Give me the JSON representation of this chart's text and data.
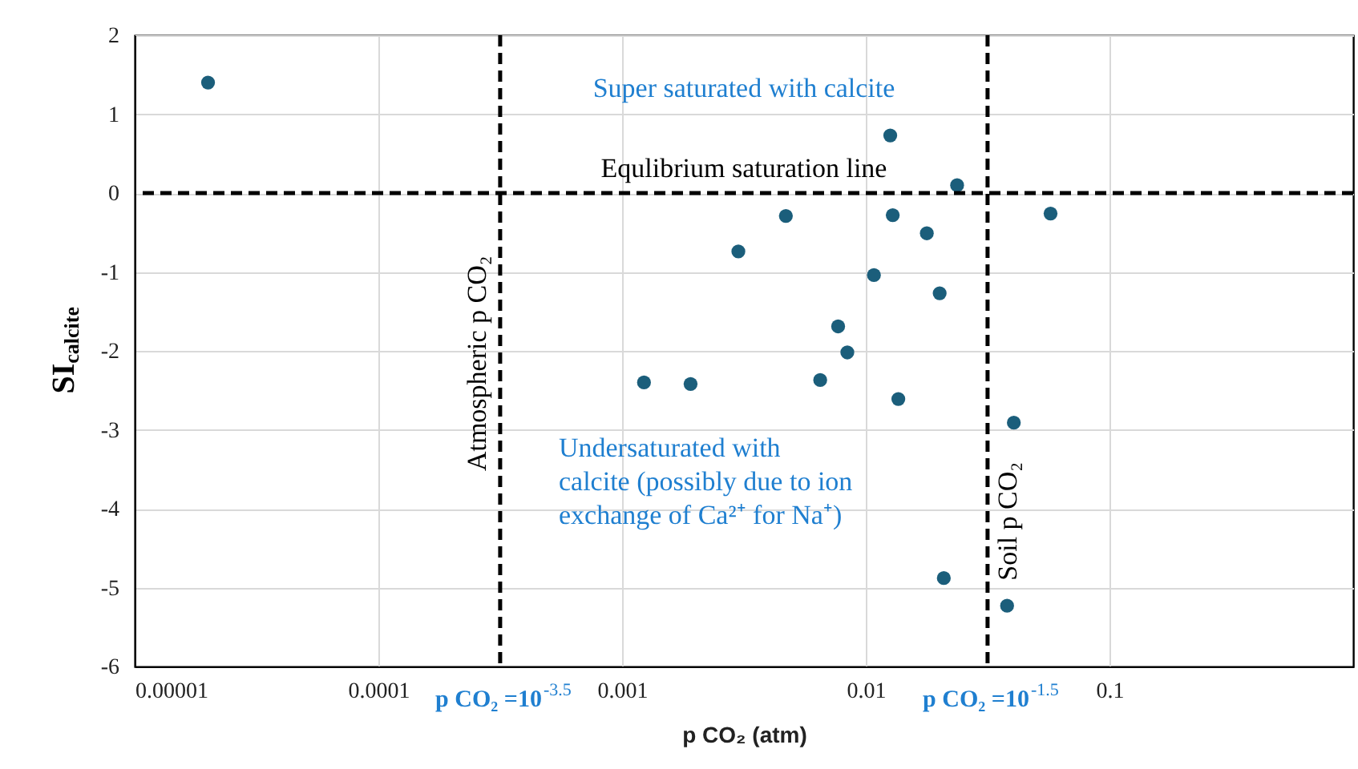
{
  "chart_data": {
    "type": "scatter",
    "xlabel": "p CO₂ (atm)",
    "ylabel": "SI$_{calcite}$",
    "x": [
      2e-05,
      0.00123,
      0.00191,
      0.003,
      0.0047,
      0.0126,
      0.0237,
      0.0129,
      0.0178,
      0.0573,
      0.0108,
      0.0201,
      0.0077,
      0.0084,
      0.0065,
      0.0136,
      0.0405,
      0.0209,
      0.038
    ],
    "series": [
      {
        "color": "#1b5e7b",
        "values": [
          1.4,
          -2.4,
          -2.42,
          -0.74,
          -0.29,
          0.73,
          0.1,
          -0.28,
          -0.51,
          -0.26,
          -1.04,
          -1.27,
          -1.69,
          -2.02,
          -2.37,
          -2.61,
          -2.91,
          -4.88,
          -5.23
        ]
      }
    ],
    "log": "x",
    "xlim": [
      1e-05,
      1
    ],
    "xticks": [
      {
        "value": 1e-05,
        "label": "0.00001"
      },
      0.0001,
      0.001,
      0.01,
      0.1
    ],
    "ylim": [
      -6,
      2
    ],
    "yticks": [
      -6,
      -5,
      -4,
      -3,
      -2,
      -1,
      0,
      1,
      2
    ],
    "grid": true,
    "marker": "circle",
    "ref_lines": [
      {
        "axis": "y",
        "value": 0,
        "label": "Equlibrium saturation line",
        "line_style": "dashed"
      },
      {
        "axis": "x",
        "value": 0.000316,
        "label": "Atmospheric p CO₂",
        "line_style": "dashed"
      },
      {
        "axis": "x",
        "value": 0.0316,
        "label": "Soil p CO₂",
        "line_style": "dashed"
      }
    ],
    "annotations": [
      "Super saturated with calcite",
      "Undersaturated with\ncalcite (possibly due to ion\nexchange of Ca²⁺ for Na⁺)",
      "p CO₂ =10$^{-3.5}$",
      "p CO₂ =10$^{-1.5}$"
    ]
  }
}
